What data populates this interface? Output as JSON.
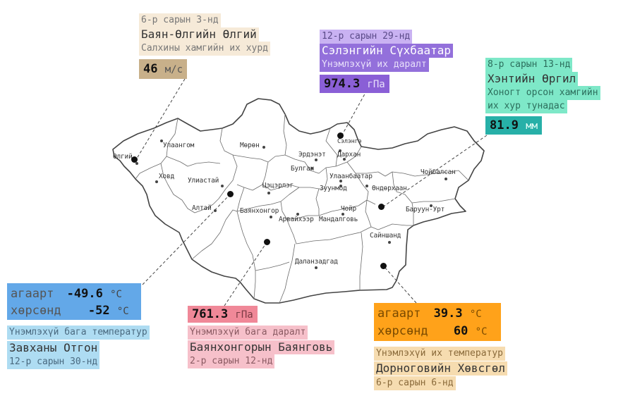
{
  "colors": {
    "wind": "#c8b08a",
    "wind_light": "#f6ead8",
    "pressure_high": "#9370db",
    "pressure_high_light": "#c9b2f2",
    "rain_text": "#7ee8c8",
    "rain_value": "#27b0a8",
    "cold": "#63a8e8",
    "cold_light": "#aedcf2",
    "pressure_low": "#f08898",
    "pressure_low_light": "#f6c0ca",
    "hot": "#ffa21a",
    "hot_light": "#f6dcb0"
  },
  "cities": {
    "olgii": "Өлгий",
    "ulaangom": "Улаангом",
    "khovd": "Ховд",
    "uliastai": "Улиастай",
    "altai": "Алтай",
    "moron": "Мөрөн",
    "tsetserleg": "Цэцэрлэг",
    "bayankhongor": "Баянхонгор",
    "arvaikheer": "Арвайхээр",
    "erdenet": "Эрдэнэт",
    "bulgan": "Булган",
    "sukhbaatar": "Сүхбаатар",
    "selenge": "Сэлэнгэ",
    "darkhan": "Дархан",
    "ulaanbaatar": "Улаанбаатар",
    "zuunmod": "Зуунмод",
    "ondorkhaan": "Өндөрхаан",
    "choibalsan": "Чойбалсан",
    "baruun_urt": "Баруун-Урт",
    "choir": "Чойр",
    "mandalgovi": "Мандалговь",
    "sainshand": "Сайншанд",
    "dalanzadgad": "Даланзадгад"
  },
  "wind": {
    "date": "6-р сарын 3-нд",
    "place": "Баян-Өлгийн Өлгий",
    "desc": "Салхины хамгийн их хурд",
    "value": "46",
    "unit": "м/с"
  },
  "pressure_high": {
    "date": "12-р сарын 29-нд",
    "place": "Сэлэнгийн Сүхбаатар",
    "desc": "Үнэмлэхүй их даралт",
    "value": "974.3",
    "unit": "гПа"
  },
  "rain": {
    "date": "8-р сарын 13-нд",
    "place": "Хэнтийн Өргил",
    "desc_line1": "Хоногт орсон хамгийн",
    "desc_line2": "их хур тунадас",
    "value": "81.9",
    "unit": "мм"
  },
  "cold": {
    "air_label": "агаарт",
    "air_value": "-49.6",
    "ground_label": "хөрсөнд",
    "ground_value": "-52",
    "unit": "°C",
    "desc": "Үнэмлэхүй бага температур",
    "place": "Завханы Отгон",
    "date": "12-р сарын 30-нд"
  },
  "pressure_low": {
    "value": "761.3",
    "unit": "гПа",
    "desc": "Үнэмлэхүй бага даралт",
    "place": "Баянхонгорын Баянговь",
    "date": "2-р сарын 12-нд"
  },
  "hot": {
    "air_label": "агаарт",
    "air_value": "39.3",
    "ground_label": "хөрсөнд",
    "ground_value": "60",
    "unit": "°C",
    "desc": "Үнэмлэхүй их температур",
    "place": "Дорноговийн Хөвсгөл",
    "date": "6-р сарын 6-нд"
  }
}
